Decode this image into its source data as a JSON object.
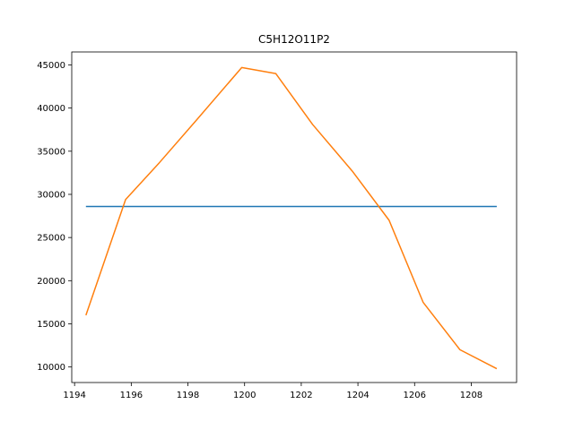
{
  "chart_data": {
    "type": "line",
    "title": "C5H12O11P2",
    "xlabel": "",
    "ylabel": "",
    "xlim": [
      1193.9,
      1209.6
    ],
    "ylim": [
      8200,
      46500
    ],
    "grid": false,
    "x_ticks": [
      1194,
      1196,
      1198,
      1200,
      1202,
      1204,
      1206,
      1208
    ],
    "y_ticks": [
      10000,
      15000,
      20000,
      25000,
      30000,
      35000,
      40000,
      45000
    ],
    "series": [
      {
        "color": "#1f77b4",
        "x": [
          1194.4,
          1208.9
        ],
        "y": [
          28600,
          28600
        ]
      },
      {
        "color": "#ff7f0e",
        "x": [
          1194.4,
          1195.8,
          1197.0,
          1198.3,
          1199.9,
          1201.1,
          1202.4,
          1203.8,
          1205.1,
          1206.3,
          1207.6,
          1208.9
        ],
        "y": [
          16000,
          29400,
          33700,
          38600,
          44700,
          44000,
          38100,
          32700,
          27000,
          17500,
          12000,
          9800
        ]
      }
    ]
  }
}
